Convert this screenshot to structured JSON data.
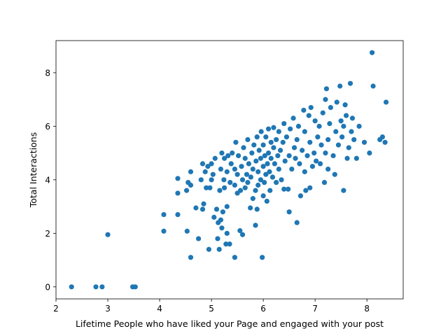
{
  "chart_data": {
    "type": "scatter",
    "xlabel": "Lifetime People who have liked your Page and engaged with your post",
    "ylabel": "Total Interactions",
    "xlim": [
      2.0,
      8.7
    ],
    "ylim": [
      -0.45,
      9.2
    ],
    "xticks": [
      2,
      3,
      4,
      5,
      6,
      7,
      8
    ],
    "yticks": [
      0,
      2,
      4,
      6,
      8
    ],
    "grid": false,
    "marker_color": "#1f77b4",
    "points": [
      [
        2.3,
        0.0
      ],
      [
        2.77,
        0.0
      ],
      [
        2.89,
        0.0
      ],
      [
        3.48,
        0.0
      ],
      [
        3.53,
        0.0
      ],
      [
        3.0,
        1.95
      ],
      [
        4.08,
        2.08
      ],
      [
        4.08,
        2.7
      ],
      [
        4.35,
        2.7
      ],
      [
        4.35,
        3.5
      ],
      [
        4.35,
        4.05
      ],
      [
        4.6,
        1.1
      ],
      [
        4.53,
        2.08
      ],
      [
        4.52,
        3.6
      ],
      [
        4.55,
        3.9
      ],
      [
        4.6,
        3.8
      ],
      [
        4.6,
        4.3
      ],
      [
        4.7,
        2.95
      ],
      [
        4.75,
        1.8
      ],
      [
        4.83,
        2.9
      ],
      [
        4.85,
        3.1
      ],
      [
        4.8,
        4.0
      ],
      [
        4.83,
        4.6
      ],
      [
        4.9,
        3.7
      ],
      [
        4.88,
        4.3
      ],
      [
        4.93,
        4.5
      ],
      [
        4.95,
        1.4
      ],
      [
        4.97,
        3.7
      ],
      [
        5.0,
        4.0
      ],
      [
        5.0,
        4.6
      ],
      [
        5.05,
        2.6
      ],
      [
        5.03,
        4.2
      ],
      [
        5.07,
        4.8
      ],
      [
        5.1,
        2.9
      ],
      [
        5.12,
        1.8
      ],
      [
        5.15,
        1.4
      ],
      [
        5.13,
        2.4
      ],
      [
        5.18,
        2.5
      ],
      [
        5.2,
        2.2
      ],
      [
        5.16,
        3.6
      ],
      [
        5.18,
        4.4
      ],
      [
        5.2,
        5.0
      ],
      [
        5.22,
        2.8
      ],
      [
        5.25,
        3.7
      ],
      [
        5.24,
        4.0
      ],
      [
        5.25,
        4.8
      ],
      [
        5.28,
        1.6
      ],
      [
        5.3,
        2.0
      ],
      [
        5.3,
        3.0
      ],
      [
        5.3,
        4.3
      ],
      [
        5.32,
        4.9
      ],
      [
        5.35,
        1.6
      ],
      [
        5.36,
        3.9
      ],
      [
        5.38,
        4.6
      ],
      [
        5.4,
        5.0
      ],
      [
        5.45,
        1.1
      ],
      [
        5.45,
        3.8
      ],
      [
        5.45,
        4.4
      ],
      [
        5.47,
        5.4
      ],
      [
        5.5,
        3.5
      ],
      [
        5.5,
        4.2
      ],
      [
        5.52,
        4.9
      ],
      [
        5.55,
        2.1
      ],
      [
        5.56,
        3.6
      ],
      [
        5.58,
        4.5
      ],
      [
        5.6,
        1.95
      ],
      [
        5.6,
        4.0
      ],
      [
        5.62,
        5.2
      ],
      [
        5.65,
        3.7
      ],
      [
        5.65,
        4.8
      ],
      [
        5.68,
        4.2
      ],
      [
        5.7,
        5.5
      ],
      [
        5.7,
        3.9
      ],
      [
        5.72,
        4.6
      ],
      [
        5.75,
        2.95
      ],
      [
        5.76,
        4.1
      ],
      [
        5.78,
        5.0
      ],
      [
        5.8,
        3.3
      ],
      [
        5.8,
        4.4
      ],
      [
        5.82,
        5.3
      ],
      [
        5.85,
        2.3
      ],
      [
        5.85,
        3.6
      ],
      [
        5.86,
        4.7
      ],
      [
        5.88,
        2.9
      ],
      [
        5.88,
        5.6
      ],
      [
        5.9,
        3.8
      ],
      [
        5.9,
        4.3
      ],
      [
        5.92,
        5.1
      ],
      [
        5.95,
        4.0
      ],
      [
        5.95,
        4.8
      ],
      [
        5.96,
        5.8
      ],
      [
        5.98,
        1.1
      ],
      [
        6.0,
        3.4
      ],
      [
        6.0,
        4.5
      ],
      [
        6.0,
        5.3
      ],
      [
        6.02,
        3.9
      ],
      [
        6.03,
        4.9
      ],
      [
        6.05,
        4.2
      ],
      [
        6.05,
        5.6
      ],
      [
        6.07,
        3.2
      ],
      [
        6.08,
        4.6
      ],
      [
        6.1,
        5.0
      ],
      [
        6.1,
        5.9
      ],
      [
        6.12,
        4.3
      ],
      [
        6.13,
        3.6
      ],
      [
        6.15,
        4.8
      ],
      [
        6.15,
        5.4
      ],
      [
        6.18,
        4.1
      ],
      [
        6.2,
        5.2
      ],
      [
        6.2,
        5.95
      ],
      [
        6.22,
        4.6
      ],
      [
        6.25,
        3.9
      ],
      [
        6.25,
        5.5
      ],
      [
        6.28,
        4.9
      ],
      [
        6.3,
        4.4
      ],
      [
        6.3,
        5.8
      ],
      [
        6.33,
        5.1
      ],
      [
        6.35,
        4.0
      ],
      [
        6.38,
        5.4
      ],
      [
        6.4,
        3.65
      ],
      [
        6.4,
        6.1
      ],
      [
        6.42,
        4.7
      ],
      [
        6.45,
        5.6
      ],
      [
        6.48,
        3.65
      ],
      [
        6.5,
        2.8
      ],
      [
        6.5,
        4.9
      ],
      [
        6.52,
        5.9
      ],
      [
        6.55,
        4.4
      ],
      [
        6.58,
        6.3
      ],
      [
        6.6,
        5.2
      ],
      [
        6.62,
        4.8
      ],
      [
        6.65,
        2.4
      ],
      [
        6.65,
        5.5
      ],
      [
        6.68,
        6.0
      ],
      [
        6.7,
        4.6
      ],
      [
        6.72,
        3.4
      ],
      [
        6.75,
        5.1
      ],
      [
        6.78,
        6.6
      ],
      [
        6.8,
        4.3
      ],
      [
        6.8,
        5.8
      ],
      [
        6.82,
        3.6
      ],
      [
        6.85,
        4.9
      ],
      [
        6.88,
        6.4
      ],
      [
        6.9,
        3.7
      ],
      [
        6.9,
        5.4
      ],
      [
        6.92,
        6.7
      ],
      [
        6.95,
        4.5
      ],
      [
        6.98,
        5.0
      ],
      [
        7.0,
        6.2
      ],
      [
        7.02,
        4.7
      ],
      [
        7.05,
        5.6
      ],
      [
        7.08,
        6.0
      ],
      [
        7.1,
        4.6
      ],
      [
        7.12,
        5.3
      ],
      [
        7.15,
        6.5
      ],
      [
        7.18,
        3.9
      ],
      [
        7.2,
        5.0
      ],
      [
        7.2,
        7.0
      ],
      [
        7.22,
        7.4
      ],
      [
        7.25,
        4.4
      ],
      [
        7.25,
        5.5
      ],
      [
        7.28,
        6.1
      ],
      [
        7.3,
        6.7
      ],
      [
        7.35,
        4.9
      ],
      [
        7.38,
        4.2
      ],
      [
        7.4,
        5.8
      ],
      [
        7.42,
        6.9
      ],
      [
        7.45,
        5.3
      ],
      [
        7.48,
        7.5
      ],
      [
        7.5,
        6.2
      ],
      [
        7.52,
        5.6
      ],
      [
        7.55,
        3.6
      ],
      [
        7.55,
        6.0
      ],
      [
        7.58,
        6.8
      ],
      [
        7.6,
        6.4
      ],
      [
        7.62,
        4.8
      ],
      [
        7.65,
        5.2
      ],
      [
        7.68,
        7.6
      ],
      [
        7.7,
        5.8
      ],
      [
        7.72,
        6.3
      ],
      [
        7.75,
        5.5
      ],
      [
        7.8,
        4.8
      ],
      [
        7.85,
        6.0
      ],
      [
        7.95,
        5.4
      ],
      [
        8.05,
        5.0
      ],
      [
        8.1,
        8.75
      ],
      [
        8.12,
        7.5
      ],
      [
        8.25,
        5.5
      ],
      [
        8.3,
        5.6
      ],
      [
        8.35,
        5.4
      ],
      [
        8.37,
        6.9
      ]
    ]
  }
}
